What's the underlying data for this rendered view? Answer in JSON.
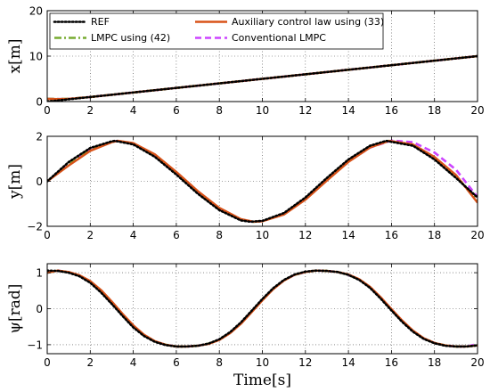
{
  "chart_data": {
    "type": "line",
    "xlabel": "Time[s]",
    "xlim": [
      0,
      20
    ],
    "xticks": [
      0,
      2,
      4,
      6,
      8,
      10,
      12,
      14,
      16,
      18,
      20
    ],
    "grid": true,
    "legend": {
      "location": "panel 1, across top",
      "entries": [
        "REF",
        "Auxiliary control law using (33)",
        "LMPC using (42)",
        "Conventional LMPC"
      ]
    },
    "series_styles": [
      {
        "name": "REF",
        "color": "#000000",
        "dash": "dotted"
      },
      {
        "name": "Auxiliary control law using (33)",
        "color": "#D95319",
        "dash": "solid"
      },
      {
        "name": "LMPC using (42)",
        "color": "#77AC30",
        "dash": "dash-dot"
      },
      {
        "name": "Conventional LMPC",
        "color": "#CC44FF",
        "dash": "dashed"
      }
    ],
    "panels": [
      {
        "ylabel": "x[m]",
        "ylim": [
          0,
          20
        ],
        "yticks": [
          0,
          10,
          20
        ],
        "series": [
          {
            "name": "REF",
            "t": [
              0,
              2,
              4,
              6,
              8,
              10,
              12,
              14,
              16,
              18,
              20
            ],
            "values": [
              0,
              1,
              2,
              3,
              4,
              5,
              6,
              7,
              8,
              9,
              10
            ]
          },
          {
            "name": "Auxiliary control law using (33)",
            "t": [
              0,
              0.5,
              1,
              2,
              4,
              6,
              8,
              10,
              12,
              14,
              16,
              18,
              20
            ],
            "values": [
              0.6,
              0.55,
              0.6,
              1.0,
              2.0,
              3.0,
              4.0,
              5.0,
              6.0,
              7.0,
              8.0,
              9.0,
              10.0
            ]
          },
          {
            "name": "LMPC using (42)",
            "t": [
              0,
              0.5,
              1,
              2,
              4,
              6,
              8,
              10,
              12,
              14,
              16,
              18,
              20
            ],
            "values": [
              0.6,
              0.55,
              0.6,
              1.0,
              2.0,
              3.0,
              4.0,
              5.0,
              6.0,
              7.0,
              8.0,
              9.0,
              10.0
            ]
          },
          {
            "name": "Conventional LMPC",
            "t": [
              0,
              0.5,
              1,
              2,
              4,
              6,
              8,
              10,
              12,
              14,
              16,
              18,
              20
            ],
            "values": [
              0.6,
              0.55,
              0.6,
              1.0,
              2.0,
              3.0,
              4.0,
              5.0,
              6.0,
              7.0,
              8.0,
              9.0,
              10.0
            ]
          }
        ]
      },
      {
        "ylabel": "y[m]",
        "ylim": [
          -2,
          2
        ],
        "yticks": [
          -2,
          0,
          2
        ],
        "series": [
          {
            "name": "REF",
            "t": [
              0,
              1,
              2,
              3,
              3.15,
              4,
              5,
              6,
              7,
              8,
              9,
              9.45,
              10,
              11,
              12,
              13,
              14,
              15,
              15.75,
              17,
              18,
              19,
              20
            ],
            "values": [
              0,
              0.86,
              1.48,
              1.78,
              1.8,
              1.64,
              1.09,
              0.3,
              -0.55,
              -1.28,
              -1.74,
              -1.8,
              -1.76,
              -1.41,
              -0.72,
              0.15,
              0.97,
              1.58,
              1.8,
              1.58,
              0.97,
              0.15,
              -0.72
            ]
          },
          {
            "name": "Auxiliary control law using (33)",
            "t": [
              0,
              1,
              2,
              3,
              3.3,
              4,
              5,
              6,
              7,
              8,
              9,
              9.6,
              10,
              11,
              12,
              13,
              14,
              15,
              15.9,
              17,
              18,
              19,
              20
            ],
            "values": [
              0,
              0.7,
              1.35,
              1.74,
              1.8,
              1.7,
              1.2,
              0.42,
              -0.43,
              -1.18,
              -1.68,
              -1.8,
              -1.78,
              -1.48,
              -0.82,
              0.03,
              0.86,
              1.5,
              1.8,
              1.64,
              1.08,
              0.28,
              -0.95
            ]
          },
          {
            "name": "LMPC using (42)",
            "t": [
              0,
              1,
              2,
              3,
              3.25,
              4,
              5,
              6,
              7,
              8,
              9,
              9.55,
              10,
              11,
              12,
              13,
              14,
              15,
              15.85,
              17,
              18,
              19,
              20
            ],
            "values": [
              0,
              0.75,
              1.4,
              1.75,
              1.8,
              1.68,
              1.16,
              0.38,
              -0.47,
              -1.21,
              -1.7,
              -1.8,
              -1.77,
              -1.46,
              -0.79,
              0.07,
              0.9,
              1.53,
              1.8,
              1.62,
              1.05,
              0.24,
              -0.9
            ]
          },
          {
            "name": "Conventional LMPC",
            "t": [
              0,
              1,
              2,
              3,
              3.25,
              4,
              5,
              6,
              7,
              8,
              9,
              9.55,
              10,
              11,
              12,
              13,
              14,
              15,
              16,
              17,
              18,
              19,
              20
            ],
            "values": [
              0,
              0.74,
              1.4,
              1.75,
              1.8,
              1.68,
              1.17,
              0.38,
              -0.46,
              -1.2,
              -1.7,
              -1.8,
              -1.77,
              -1.46,
              -0.8,
              0.05,
              0.88,
              1.5,
              1.81,
              1.74,
              1.28,
              0.52,
              -0.7
            ]
          }
        ]
      },
      {
        "ylabel": "ψ[rad]",
        "ylim": [
          -1.25,
          1.25
        ],
        "yticks": [
          -1,
          0,
          1
        ],
        "series": [
          {
            "name": "REF",
            "t": [
              0,
              0.5,
              1,
              1.5,
              2,
              2.5,
              3,
              3.5,
              4,
              4.5,
              5,
              5.5,
              6,
              6.5,
              7,
              7.5,
              8,
              8.5,
              9,
              9.5,
              10,
              10.5,
              11,
              11.5,
              12,
              12.5,
              13,
              13.5,
              14,
              14.5,
              15,
              15.5,
              16,
              16.5,
              17,
              17.5,
              18,
              18.5,
              19,
              19.5,
              20
            ],
            "values": [
              1.06,
              1.05,
              1.0,
              0.9,
              0.72,
              0.45,
              0.13,
              -0.2,
              -0.52,
              -0.76,
              -0.92,
              -1.01,
              -1.05,
              -1.05,
              -1.03,
              -0.97,
              -0.85,
              -0.65,
              -0.38,
              -0.06,
              0.27,
              0.57,
              0.8,
              0.95,
              1.03,
              1.06,
              1.05,
              1.02,
              0.94,
              0.8,
              0.58,
              0.28,
              -0.05,
              -0.37,
              -0.64,
              -0.84,
              -0.96,
              -1.03,
              -1.05,
              -1.05,
              -1.02
            ]
          },
          {
            "name": "Auxiliary control law using (33)",
            "t": [
              0,
              0.5,
              1,
              1.5,
              2,
              2.5,
              3,
              3.5,
              4,
              4.5,
              5,
              5.5,
              6,
              6.5,
              7,
              7.5,
              8,
              8.5,
              9,
              9.5,
              10,
              10.5,
              11,
              11.5,
              12,
              12.5,
              13,
              13.5,
              14,
              14.5,
              15,
              15.5,
              16,
              16.5,
              17,
              17.5,
              18,
              18.5,
              19,
              19.5,
              20
            ],
            "values": [
              1.0,
              1.06,
              1.02,
              0.93,
              0.77,
              0.52,
              0.2,
              -0.14,
              -0.46,
              -0.72,
              -0.9,
              -1.0,
              -1.05,
              -1.05,
              -1.03,
              -0.98,
              -0.87,
              -0.68,
              -0.42,
              -0.1,
              0.23,
              0.54,
              0.78,
              0.94,
              1.02,
              1.06,
              1.05,
              1.02,
              0.95,
              0.82,
              0.61,
              0.32,
              -0.01,
              -0.33,
              -0.61,
              -0.82,
              -0.95,
              -1.02,
              -1.05,
              -1.05,
              -1.02
            ]
          },
          {
            "name": "LMPC using (42)",
            "t": [
              0,
              0.5,
              1,
              1.5,
              2,
              2.5,
              3,
              3.5,
              4,
              4.5,
              5,
              5.5,
              6,
              6.5,
              7,
              7.5,
              8,
              8.5,
              9,
              9.5,
              10,
              10.5,
              11,
              11.5,
              12,
              12.5,
              13,
              13.5,
              14,
              14.5,
              15,
              15.5,
              16,
              16.5,
              17,
              17.5,
              18,
              18.5,
              19,
              19.5,
              20
            ],
            "values": [
              1.0,
              1.06,
              1.01,
              0.92,
              0.75,
              0.49,
              0.17,
              -0.17,
              -0.49,
              -0.74,
              -0.91,
              -1.0,
              -1.05,
              -1.05,
              -1.03,
              -0.97,
              -0.86,
              -0.67,
              -0.4,
              -0.08,
              0.25,
              0.55,
              0.79,
              0.94,
              1.02,
              1.06,
              1.05,
              1.02,
              0.94,
              0.81,
              0.6,
              0.3,
              -0.03,
              -0.35,
              -0.62,
              -0.83,
              -0.95,
              -1.02,
              -1.05,
              -1.05,
              -1.02
            ]
          },
          {
            "name": "Conventional LMPC",
            "t": [
              0,
              0.5,
              1,
              1.5,
              2,
              2.5,
              3,
              3.5,
              4,
              4.5,
              5,
              5.5,
              6,
              6.5,
              7,
              7.5,
              8,
              8.5,
              9,
              9.5,
              10,
              10.5,
              11,
              11.5,
              12,
              12.5,
              13,
              13.5,
              14,
              14.5,
              15,
              15.5,
              16,
              16.5,
              17,
              17.5,
              18,
              18.5,
              19,
              19.5,
              20
            ],
            "values": [
              1.0,
              1.06,
              1.01,
              0.92,
              0.75,
              0.49,
              0.17,
              -0.17,
              -0.49,
              -0.74,
              -0.91,
              -1.0,
              -1.05,
              -1.05,
              -1.03,
              -0.97,
              -0.86,
              -0.67,
              -0.4,
              -0.08,
              0.25,
              0.55,
              0.79,
              0.94,
              1.02,
              1.06,
              1.05,
              1.02,
              0.94,
              0.81,
              0.6,
              0.31,
              -0.02,
              -0.34,
              -0.62,
              -0.83,
              -0.95,
              -1.02,
              -1.05,
              -1.05,
              -0.98
            ]
          }
        ]
      }
    ]
  }
}
